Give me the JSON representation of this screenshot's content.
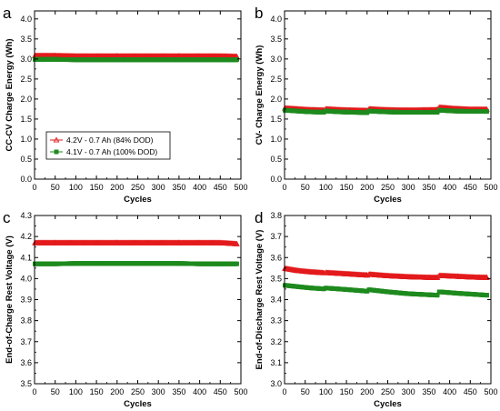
{
  "colors": {
    "red": "#e31a1c",
    "green": "#1e8a1e",
    "axis": "#000000"
  },
  "chart_data": [
    {
      "panel_label": "a",
      "type": "scatter",
      "xlabel": "Cycles",
      "ylabel": "CC-CV Charge Energy (Wh)",
      "xlim": [
        0,
        500
      ],
      "ylim": [
        0,
        4.2
      ],
      "xticks": [
        0,
        50,
        100,
        150,
        200,
        250,
        300,
        350,
        400,
        450,
        500
      ],
      "yticks": [
        0.0,
        0.5,
        1.0,
        1.5,
        2.0,
        2.5,
        3.0,
        3.5,
        4.0
      ],
      "ytick_labels": [
        "0.0",
        "0.5",
        "1.0",
        "1.5",
        "2.0",
        "2.5",
        "3.0",
        "3.5",
        "4.0"
      ],
      "grid": false,
      "legend": {
        "placement": "lower-left",
        "entries": [
          {
            "label": "4.2V - 0.7 Ah (84% DOD)",
            "color": "red",
            "marker": "open-triangle"
          },
          {
            "label": "4.1V - 0.7 Ah (100% DOD)",
            "color": "green",
            "marker": "filled-square"
          }
        ]
      },
      "series": [
        {
          "color": "red",
          "x": [
            1,
            50,
            100,
            150,
            200,
            250,
            300,
            350,
            400,
            450,
            490
          ],
          "y": [
            3.08,
            3.08,
            3.07,
            3.07,
            3.07,
            3.07,
            3.07,
            3.07,
            3.07,
            3.07,
            3.06
          ]
        },
        {
          "color": "green",
          "x": [
            1,
            50,
            100,
            150,
            200,
            250,
            300,
            350,
            400,
            450,
            490
          ],
          "y": [
            2.99,
            2.99,
            2.98,
            2.98,
            2.98,
            2.98,
            2.98,
            2.98,
            2.98,
            2.98,
            2.98
          ]
        }
      ]
    },
    {
      "panel_label": "b",
      "type": "scatter",
      "xlabel": "Cycles",
      "ylabel": "CV- Charge Energy (Wh)",
      "xlim": [
        0,
        500
      ],
      "ylim": [
        0,
        4.2
      ],
      "xticks": [
        0,
        50,
        100,
        150,
        200,
        250,
        300,
        350,
        400,
        450,
        500
      ],
      "yticks": [
        0.0,
        0.5,
        1.0,
        1.5,
        2.0,
        2.5,
        3.0,
        3.5,
        4.0
      ],
      "ytick_labels": [
        "0.0",
        "0.5",
        "1.0",
        "1.5",
        "2.0",
        "2.5",
        "3.0",
        "3.5",
        "4.0"
      ],
      "grid": false,
      "series": [
        {
          "color": "red",
          "x": [
            1,
            30,
            60,
            95,
            100,
            130,
            160,
            200,
            205,
            240,
            280,
            320,
            370,
            375,
            410,
            450,
            490
          ],
          "y": [
            1.77,
            1.75,
            1.73,
            1.72,
            1.75,
            1.73,
            1.72,
            1.71,
            1.75,
            1.73,
            1.72,
            1.72,
            1.73,
            1.79,
            1.76,
            1.74,
            1.74
          ]
        },
        {
          "color": "green",
          "x": [
            1,
            30,
            60,
            95,
            100,
            130,
            160,
            200,
            205,
            240,
            280,
            320,
            370,
            375,
            410,
            450,
            490
          ],
          "y": [
            1.72,
            1.7,
            1.68,
            1.67,
            1.7,
            1.68,
            1.67,
            1.66,
            1.7,
            1.68,
            1.67,
            1.67,
            1.67,
            1.72,
            1.7,
            1.69,
            1.69
          ]
        }
      ]
    },
    {
      "panel_label": "c",
      "type": "scatter",
      "xlabel": "Cycles",
      "ylabel": "End-of-Charge Rest Voltage (V)",
      "xlim": [
        0,
        500
      ],
      "ylim": [
        3.5,
        4.3
      ],
      "xticks": [
        0,
        50,
        100,
        150,
        200,
        250,
        300,
        350,
        400,
        450,
        500
      ],
      "yticks": [
        3.5,
        3.6,
        3.7,
        3.8,
        3.9,
        4.0,
        4.1,
        4.2,
        4.3
      ],
      "ytick_labels": [
        "3.5",
        "3.6",
        "3.7",
        "3.8",
        "3.9",
        "4.0",
        "4.1",
        "4.2",
        "4.3"
      ],
      "grid": false,
      "series": [
        {
          "color": "red",
          "x": [
            1,
            50,
            100,
            150,
            200,
            250,
            300,
            350,
            400,
            450,
            490
          ],
          "y": [
            4.17,
            4.17,
            4.17,
            4.17,
            4.17,
            4.17,
            4.17,
            4.17,
            4.17,
            4.17,
            4.165
          ]
        },
        {
          "color": "green",
          "x": [
            1,
            50,
            100,
            150,
            200,
            250,
            300,
            350,
            400,
            450,
            490
          ],
          "y": [
            4.07,
            4.07,
            4.072,
            4.072,
            4.072,
            4.072,
            4.072,
            4.072,
            4.07,
            4.07,
            4.07
          ]
        }
      ]
    },
    {
      "panel_label": "d",
      "type": "scatter",
      "xlabel": "Cycles",
      "ylabel": "End-of-Discharge Rest Voltage (V)",
      "xlim": [
        0,
        500
      ],
      "ylim": [
        3.0,
        3.8
      ],
      "xticks": [
        0,
        50,
        100,
        150,
        200,
        250,
        300,
        350,
        400,
        450,
        500
      ],
      "yticks": [
        3.0,
        3.1,
        3.2,
        3.3,
        3.4,
        3.5,
        3.6,
        3.7,
        3.8
      ],
      "ytick_labels": [
        "3.0",
        "3.1",
        "3.2",
        "3.3",
        "3.4",
        "3.5",
        "3.6",
        "3.7",
        "3.8"
      ],
      "grid": false,
      "series": [
        {
          "color": "red",
          "x": [
            1,
            30,
            60,
            95,
            100,
            150,
            200,
            205,
            250,
            300,
            350,
            370,
            375,
            420,
            460,
            490
          ],
          "y": [
            3.548,
            3.538,
            3.532,
            3.527,
            3.528,
            3.522,
            3.516,
            3.52,
            3.513,
            3.508,
            3.505,
            3.505,
            3.514,
            3.51,
            3.506,
            3.505
          ]
        },
        {
          "color": "green",
          "x": [
            1,
            30,
            60,
            95,
            100,
            150,
            200,
            205,
            250,
            300,
            350,
            370,
            375,
            420,
            460,
            490
          ],
          "y": [
            3.468,
            3.462,
            3.456,
            3.451,
            3.455,
            3.448,
            3.44,
            3.447,
            3.437,
            3.428,
            3.423,
            3.421,
            3.437,
            3.43,
            3.425,
            3.421
          ]
        }
      ]
    }
  ]
}
